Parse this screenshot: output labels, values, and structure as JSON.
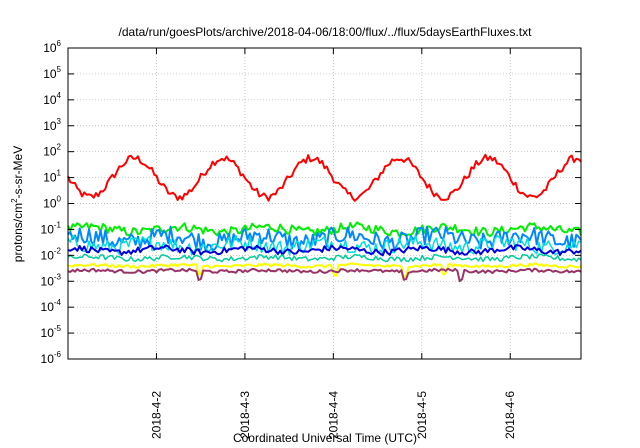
{
  "chart_data": {
    "type": "line",
    "title": "/data/run/goesPlots/archive/2018-04-06/18:00/flux/../flux/5daysEarthFluxes.txt",
    "xlabel": "Coordinated Universal Time (UTC)",
    "ylabel": "protons/cm²-s-sr-MeV",
    "ylabel_base": "protons/cm",
    "ylabel_sup": "2",
    "ylabel_tail": "-s-sr-MeV",
    "yscale": "log",
    "ylim": [
      1e-06,
      1000000
    ],
    "xlim_days": [
      0,
      5.8
    ],
    "xticks": [
      {
        "day": 1,
        "label": "2018-4-2"
      },
      {
        "day": 2,
        "label": "2018-4-3"
      },
      {
        "day": 3,
        "label": "2018-4-4"
      },
      {
        "day": 4,
        "label": "2018-4-5"
      },
      {
        "day": 5,
        "label": "2018-4-6"
      }
    ],
    "yticks": [
      {
        "exp": 6,
        "label": "10",
        "sup": "6"
      },
      {
        "exp": 5,
        "label": "10",
        "sup": "5"
      },
      {
        "exp": 4,
        "label": "10",
        "sup": "4"
      },
      {
        "exp": 3,
        "label": "10",
        "sup": "3"
      },
      {
        "exp": 2,
        "label": "10",
        "sup": "2"
      },
      {
        "exp": 1,
        "label": "10",
        "sup": "1"
      },
      {
        "exp": 0,
        "label": "10",
        "sup": "0"
      },
      {
        "exp": -1,
        "label": "10",
        "sup": "-1"
      },
      {
        "exp": -2,
        "label": "10",
        "sup": "-2"
      },
      {
        "exp": -3,
        "label": "10",
        "sup": "-3"
      },
      {
        "exp": -4,
        "label": "10",
        "sup": "-4"
      },
      {
        "exp": -5,
        "label": "10",
        "sup": "-5"
      },
      {
        "exp": -6,
        "label": "10",
        "sup": "-6"
      }
    ],
    "grid": true,
    "legend": "none",
    "series": [
      {
        "color": "#ff0000",
        "width": 2,
        "base": 1.0,
        "amp": 0.75,
        "period": 1.0,
        "phase": 0.5,
        "noise": 0.15,
        "dips": []
      },
      {
        "color": "#00ee00",
        "width": 2,
        "base": -1.0,
        "amp": 0.1,
        "period": 1.0,
        "phase": 0.0,
        "noise": 0.18,
        "dips": []
      },
      {
        "color": "#0088ff",
        "width": 2,
        "base": -1.35,
        "amp": 0.15,
        "period": 1.0,
        "phase": 0.1,
        "noise": 0.35,
        "dips": []
      },
      {
        "color": "#00dddd",
        "width": 1.5,
        "base": -1.6,
        "amp": 0.1,
        "period": 1.0,
        "phase": 0.3,
        "noise": 0.3,
        "dips": []
      },
      {
        "color": "#0000dd",
        "width": 2,
        "base": -1.8,
        "amp": 0.08,
        "period": 1.0,
        "phase": 0.2,
        "noise": 0.12,
        "dips": []
      },
      {
        "color": "#00cc99",
        "width": 1.5,
        "base": -2.1,
        "amp": 0.05,
        "period": 1.0,
        "phase": 0.0,
        "noise": 0.1,
        "dips": []
      },
      {
        "color": "#ffff00",
        "width": 2,
        "base": -2.4,
        "amp": 0.03,
        "period": 1.0,
        "phase": 0.0,
        "noise": 0.06,
        "dips": [
          1.48,
          3.02,
          3.82,
          4.25
        ]
      },
      {
        "color": "#993366",
        "width": 2,
        "base": -2.6,
        "amp": 0.03,
        "period": 1.0,
        "phase": 0.0,
        "noise": 0.06,
        "dips": [
          1.48,
          3.82,
          4.44
        ]
      }
    ]
  }
}
